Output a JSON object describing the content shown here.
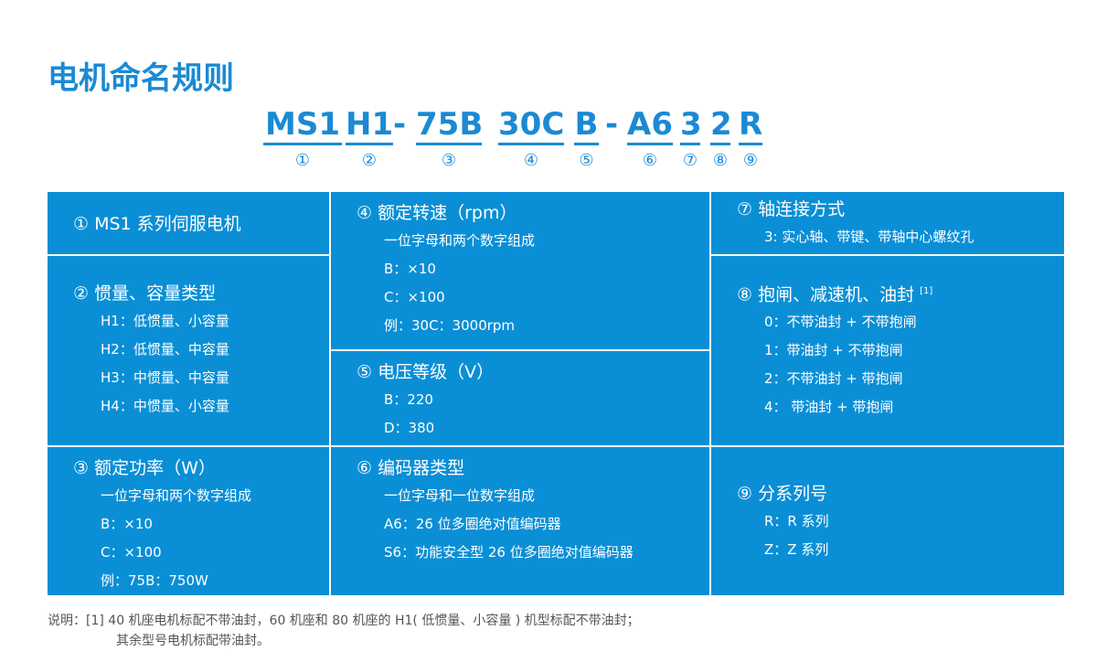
{
  "title": "电机命名规则",
  "code": [
    {
      "seg": "MS1",
      "num": "①"
    },
    {
      "seg": "H1",
      "num": "②"
    },
    {
      "seg": "75B",
      "num": "③"
    },
    {
      "seg": "30C",
      "num": "④"
    },
    {
      "seg": "B",
      "num": "⑤"
    },
    {
      "seg": "A6",
      "num": "⑥"
    },
    {
      "seg": "3",
      "num": "⑦"
    },
    {
      "seg": "2",
      "num": "⑧"
    },
    {
      "seg": "R",
      "num": "⑨"
    }
  ],
  "dash": "-",
  "cells": [
    {
      "h": "① MS1 系列伺服电机",
      "items": []
    },
    {
      "h": "② 惯量、容量类型",
      "items": [
        "H1：低惯量、小容量",
        "H2：低惯量、中容量",
        "H3：中惯量、中容量",
        "H4：中惯量、小容量"
      ]
    },
    {
      "h": "③ 额定功率（W）",
      "items": [
        "一位字母和两个数字组成",
        "B：×10",
        "C：×100",
        "例：75B：750W"
      ]
    },
    {
      "h": "④ 额定转速（rpm）",
      "items": [
        "一位字母和两个数字组成",
        "B：×10",
        "C：×100",
        "例：30C：3000rpm"
      ]
    },
    {
      "h": "⑤ 电压等级（V）",
      "items": [
        "B：220",
        "D：380"
      ]
    },
    {
      "h": "⑥ 编码器类型",
      "items": [
        "一位字母和一位数字组成",
        "A6：26 位多圈绝对值编码器",
        "S6：功能安全型 26 位多圈绝对值编码器"
      ]
    },
    {
      "h": "⑦ 轴连接方式",
      "items": [
        "3: 实心轴、带键、带轴中心螺纹孔"
      ]
    },
    {
      "h": "⑧ 抱闸、减速机、油封",
      "sup": "[1]",
      "items": [
        "0：不带油封 + 不带抱闸",
        "1：带油封 + 不带抱闸",
        "2：不带油封 + 带抱闸",
        "4： 带油封 + 带抱闸"
      ]
    },
    {
      "h": "⑨ 分系列号",
      "items": [
        "R：R 系列",
        "Z：Z 系列"
      ]
    }
  ],
  "note": [
    "说明：[1] 40 机座电机标配不带油封，60 机座和 80 机座的 H1( 低惯量、小容量 ) 机型标配不带油封；",
    "其余型号电机标配带油封。"
  ],
  "colors": {
    "accent": "#1a8ad4",
    "cell_bg": "#0a8fd6"
  }
}
